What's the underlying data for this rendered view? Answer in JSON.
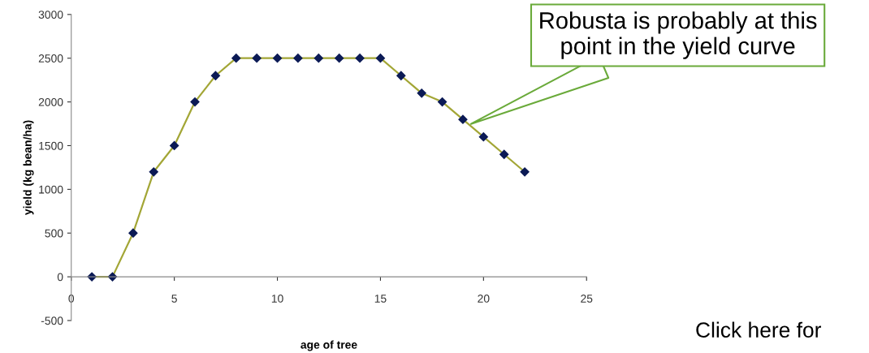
{
  "chart_data": {
    "type": "line",
    "xlabel": "age of tree",
    "ylabel": "yield (kg bean/ha)",
    "x": [
      1,
      2,
      3,
      4,
      5,
      6,
      7,
      8,
      9,
      10,
      11,
      12,
      13,
      14,
      15,
      16,
      17,
      18,
      19,
      20,
      21,
      22
    ],
    "series": [
      {
        "color": "#a3a636",
        "values": [
          0,
          0,
          500,
          1200,
          1500,
          2000,
          2300,
          2500,
          2500,
          2500,
          2500,
          2500,
          2500,
          2500,
          2500,
          2300,
          2100,
          2000,
          1800,
          1600,
          1400,
          1200
        ]
      }
    ],
    "marker": "diamond",
    "line_style": "solid",
    "xlim": [
      0,
      25
    ],
    "xticks": [
      0,
      5,
      10,
      15,
      20,
      25
    ],
    "ylim": [
      -500,
      3000
    ],
    "yticks": [
      -500,
      0,
      500,
      1000,
      1500,
      2000,
      2500,
      3000
    ],
    "grid": false,
    "annotations": [
      "Robusta is probably at this\npoint in the yield curve",
      "Click here for"
    ]
  }
}
